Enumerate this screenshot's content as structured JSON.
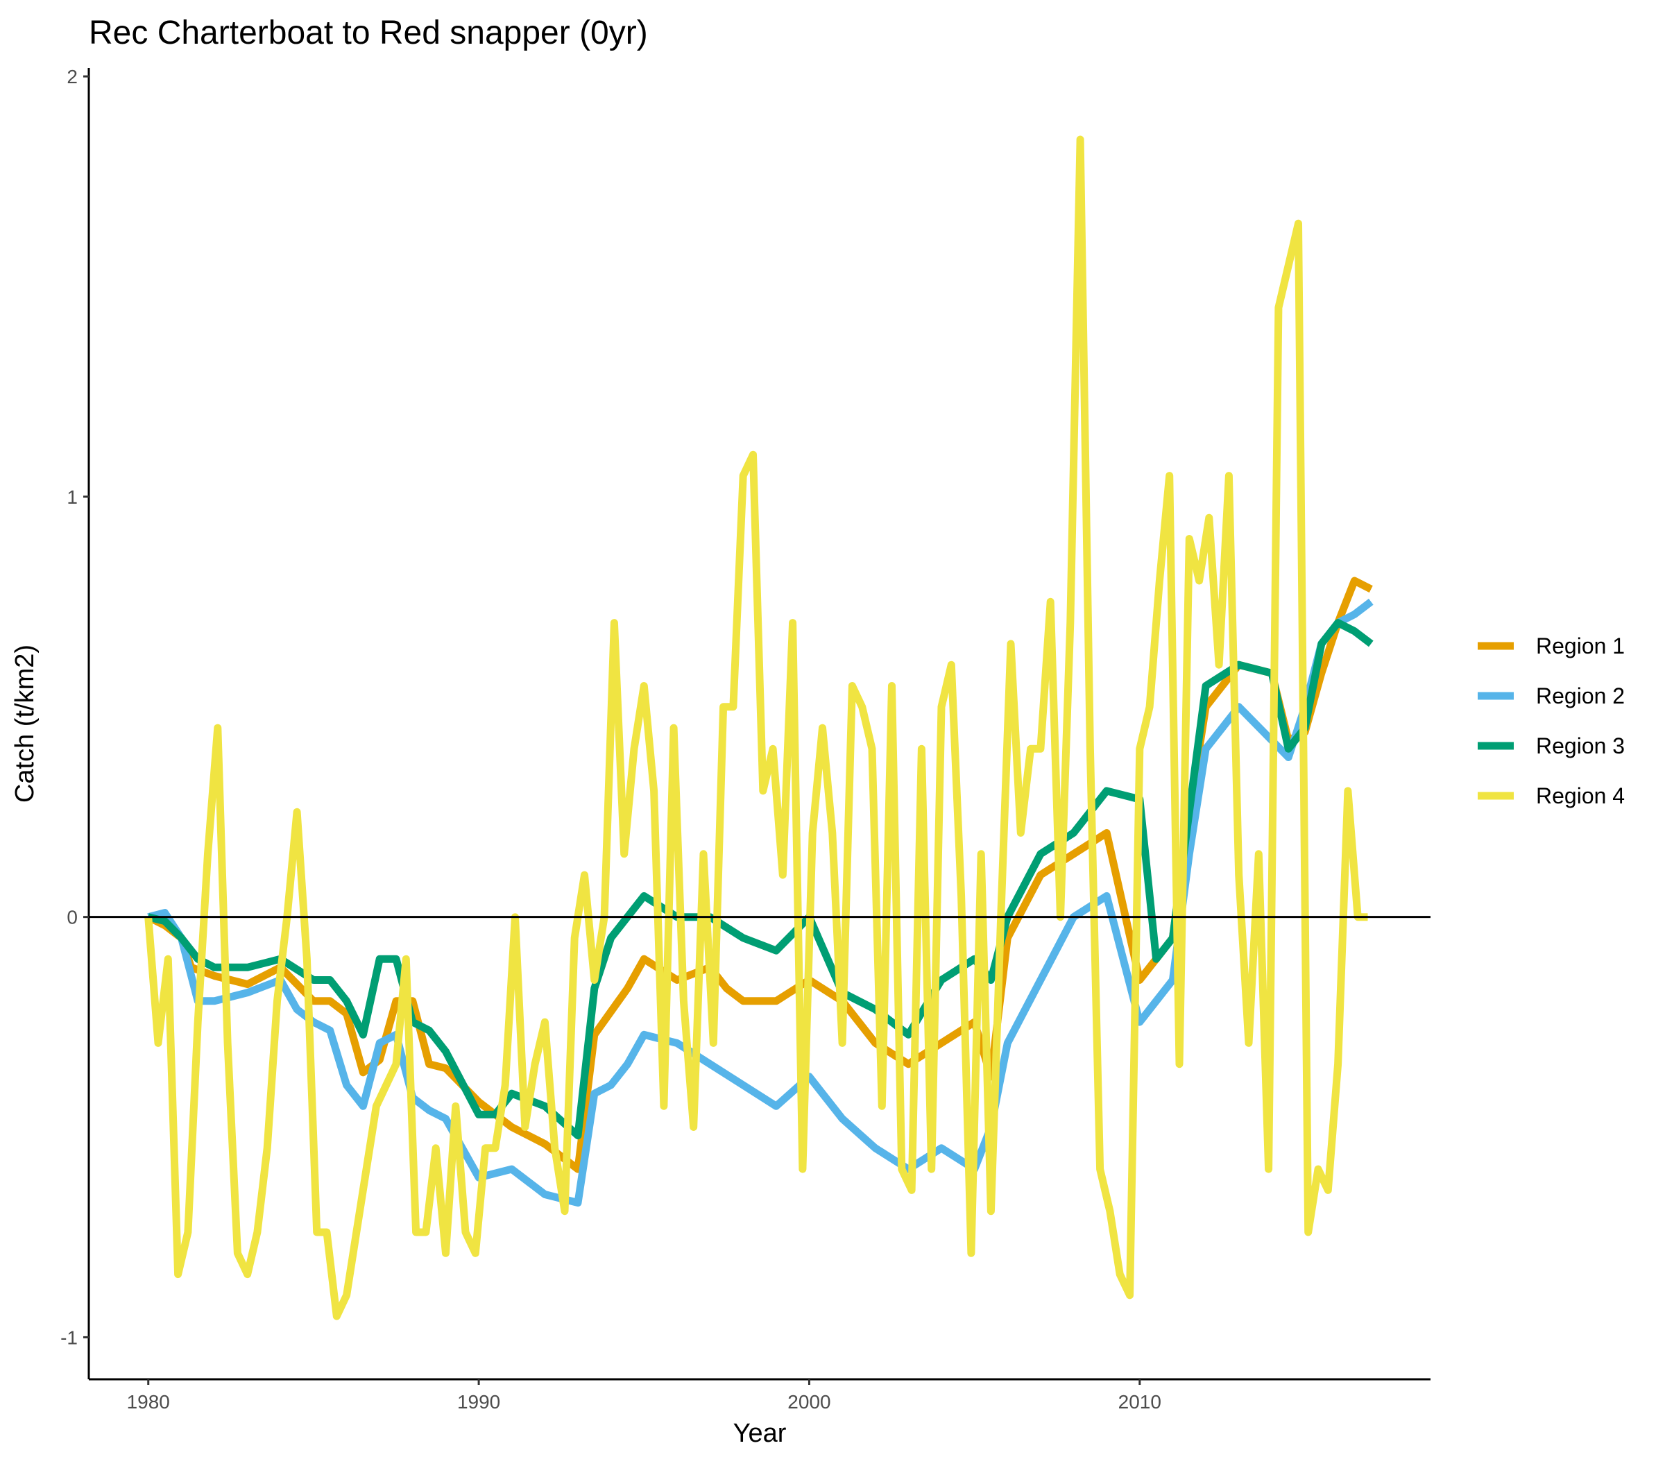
{
  "chart_data": {
    "type": "line",
    "title": "Rec Charterboat to Red snapper (0yr)",
    "xlabel": "Year",
    "ylabel": "Catch (t/km2)",
    "xlim": [
      1978.2,
      2018.8
    ],
    "ylim": [
      -1.1,
      2.02
    ],
    "x_ticks": [
      1980,
      1990,
      2000,
      2010
    ],
    "x_tick_labels": [
      "1980",
      "1990",
      "2000",
      "2010"
    ],
    "y_ticks": [
      -1,
      0,
      1,
      2
    ],
    "y_tick_labels": [
      "-1",
      "0",
      "1",
      "2"
    ],
    "reference_line_y": 0,
    "grid": false,
    "legend": {
      "position": "right"
    },
    "series": [
      {
        "name": "Region 1",
        "color": "#E69F00",
        "x": [
          1980.0,
          1980.5,
          1981.0,
          1981.3,
          1982.0,
          1983.0,
          1984.0,
          1985.0,
          1985.5,
          1986.0,
          1986.5,
          1987.0,
          1987.5,
          1988.0,
          1988.5,
          1989.0,
          1990.0,
          1991.0,
          1992.0,
          1993.0,
          1993.5,
          1994.5,
          1995.0,
          1996.0,
          1997.0,
          1997.5,
          1998.0,
          1999.0,
          2000.0,
          2001.0,
          2002.0,
          2003.0,
          2004.0,
          2005.0,
          2005.5,
          2006.0,
          2007.0,
          2008.0,
          2009.0,
          2010.0,
          2011.0,
          2011.5,
          2012.0,
          2013.0,
          2014.0,
          2014.5,
          2015.0,
          2015.5,
          2016.0,
          2016.5,
          2017.0
        ],
        "y": [
          0.0,
          -0.02,
          -0.05,
          -0.12,
          -0.14,
          -0.16,
          -0.12,
          -0.2,
          -0.2,
          -0.23,
          -0.37,
          -0.34,
          -0.2,
          -0.2,
          -0.35,
          -0.36,
          -0.44,
          -0.5,
          -0.54,
          -0.6,
          -0.28,
          -0.17,
          -0.1,
          -0.15,
          -0.12,
          -0.17,
          -0.2,
          -0.2,
          -0.15,
          -0.2,
          -0.3,
          -0.35,
          -0.3,
          -0.25,
          -0.38,
          -0.05,
          0.1,
          0.15,
          0.2,
          -0.15,
          -0.05,
          0.25,
          0.5,
          0.6,
          0.58,
          0.42,
          0.44,
          0.58,
          0.7,
          0.8,
          0.78
        ]
      },
      {
        "name": "Region 2",
        "color": "#56B4E9",
        "x": [
          1980.0,
          1980.5,
          1981.0,
          1981.5,
          1982.0,
          1983.0,
          1984.0,
          1984.5,
          1985.0,
          1985.5,
          1986.0,
          1986.5,
          1987.0,
          1987.5,
          1988.0,
          1988.5,
          1989.0,
          1990.0,
          1991.0,
          1992.0,
          1993.0,
          1993.5,
          1994.0,
          1994.5,
          1995.0,
          1996.0,
          1997.0,
          1998.0,
          1999.0,
          2000.0,
          2001.0,
          2002.0,
          2003.0,
          2004.0,
          2005.0,
          2005.5,
          2006.0,
          2007.0,
          2008.0,
          2009.0,
          2010.0,
          2011.0,
          2011.5,
          2012.0,
          2013.0,
          2014.0,
          2014.5,
          2015.0,
          2015.5,
          2016.0,
          2016.5,
          2017.0
        ],
        "y": [
          0.0,
          0.01,
          -0.05,
          -0.2,
          -0.2,
          -0.18,
          -0.15,
          -0.22,
          -0.25,
          -0.27,
          -0.4,
          -0.45,
          -0.3,
          -0.28,
          -0.43,
          -0.46,
          -0.48,
          -0.62,
          -0.6,
          -0.66,
          -0.68,
          -0.42,
          -0.4,
          -0.35,
          -0.28,
          -0.3,
          -0.35,
          -0.4,
          -0.45,
          -0.38,
          -0.48,
          -0.55,
          -0.6,
          -0.55,
          -0.6,
          -0.5,
          -0.3,
          -0.15,
          0.0,
          0.05,
          -0.25,
          -0.15,
          0.15,
          0.4,
          0.5,
          0.42,
          0.38,
          0.5,
          0.65,
          0.7,
          0.72,
          0.75
        ]
      },
      {
        "name": "Region 3",
        "color": "#009E73",
        "x": [
          1980.0,
          1980.5,
          1981.0,
          1981.5,
          1982.0,
          1983.0,
          1984.0,
          1985.0,
          1985.5,
          1986.0,
          1986.5,
          1987.0,
          1987.5,
          1988.0,
          1988.5,
          1989.0,
          1990.0,
          1990.5,
          1991.0,
          1992.0,
          1993.0,
          1993.5,
          1994.0,
          1995.0,
          1996.0,
          1997.0,
          1998.0,
          1999.0,
          2000.0,
          2001.0,
          2002.0,
          2003.0,
          2004.0,
          2005.0,
          2005.5,
          2006.0,
          2007.0,
          2008.0,
          2009.0,
          2010.0,
          2010.5,
          2011.0,
          2012.0,
          2013.0,
          2014.0,
          2014.5,
          2015.0,
          2015.5,
          2016.0,
          2016.5,
          2017.0
        ],
        "y": [
          0.0,
          -0.01,
          -0.05,
          -0.1,
          -0.12,
          -0.12,
          -0.1,
          -0.15,
          -0.15,
          -0.2,
          -0.28,
          -0.1,
          -0.1,
          -0.25,
          -0.27,
          -0.32,
          -0.47,
          -0.47,
          -0.42,
          -0.45,
          -0.52,
          -0.17,
          -0.05,
          0.05,
          0.0,
          0.0,
          -0.05,
          -0.08,
          0.0,
          -0.18,
          -0.22,
          -0.28,
          -0.15,
          -0.1,
          -0.15,
          0.0,
          0.15,
          0.2,
          0.3,
          0.28,
          -0.1,
          -0.05,
          0.55,
          0.6,
          0.58,
          0.4,
          0.45,
          0.65,
          0.7,
          0.68,
          0.65
        ]
      },
      {
        "name": "Region 4",
        "color": "#F0E442",
        "x": [
          1980.0,
          1980.3,
          1980.6,
          1980.9,
          1981.2,
          1981.5,
          1981.8,
          1982.1,
          1982.4,
          1982.7,
          1983.0,
          1983.3,
          1983.6,
          1983.9,
          1984.2,
          1984.5,
          1984.8,
          1985.1,
          1985.4,
          1985.7,
          1986.0,
          1986.3,
          1986.6,
          1986.9,
          1987.2,
          1987.5,
          1987.8,
          1988.1,
          1988.4,
          1988.7,
          1989.0,
          1989.3,
          1989.6,
          1989.9,
          1990.2,
          1990.5,
          1990.8,
          1991.1,
          1991.4,
          1991.7,
          1992.0,
          1992.3,
          1992.6,
          1992.9,
          1993.2,
          1993.5,
          1993.8,
          1994.1,
          1994.4,
          1994.7,
          1995.0,
          1995.3,
          1995.6,
          1995.9,
          1996.2,
          1996.5,
          1996.8,
          1997.1,
          1997.4,
          1997.7,
          1998.0,
          1998.3,
          1998.6,
          1998.9,
          1999.2,
          1999.5,
          1999.8,
          2000.1,
          2000.4,
          2000.7,
          2001.0,
          2001.3,
          2001.6,
          2001.9,
          2002.2,
          2002.5,
          2002.8,
          2003.1,
          2003.4,
          2003.7,
          2004.0,
          2004.3,
          2004.6,
          2004.9,
          2005.2,
          2005.5,
          2005.8,
          2006.1,
          2006.4,
          2006.7,
          2007.0,
          2007.3,
          2007.6,
          2007.9,
          2008.2,
          2008.5,
          2008.8,
          2009.1,
          2009.4,
          2009.7,
          2010.0,
          2010.3,
          2010.6,
          2010.9,
          2011.2,
          2011.5,
          2011.8,
          2012.1,
          2012.4,
          2012.7,
          2013.0,
          2013.3,
          2013.6,
          2013.9,
          2014.2,
          2014.5,
          2014.8,
          2015.1,
          2015.4,
          2015.7,
          2016.0,
          2016.3,
          2016.6,
          2016.9
        ],
        "y": [
          0.0,
          -0.3,
          -0.1,
          -0.85,
          -0.75,
          -0.25,
          0.15,
          0.45,
          -0.3,
          -0.8,
          -0.85,
          -0.75,
          -0.55,
          -0.2,
          0.0,
          0.25,
          -0.1,
          -0.75,
          -0.75,
          -0.95,
          -0.9,
          -0.75,
          -0.6,
          -0.45,
          -0.4,
          -0.35,
          -0.1,
          -0.75,
          -0.75,
          -0.55,
          -0.8,
          -0.45,
          -0.75,
          -0.8,
          -0.55,
          -0.55,
          -0.4,
          0.0,
          -0.5,
          -0.35,
          -0.25,
          -0.55,
          -0.7,
          -0.05,
          0.1,
          -0.15,
          0.0,
          0.7,
          0.15,
          0.4,
          0.55,
          0.3,
          -0.45,
          0.45,
          -0.2,
          -0.5,
          0.15,
          -0.3,
          0.5,
          0.5,
          1.05,
          1.1,
          0.3,
          0.4,
          0.1,
          0.7,
          -0.6,
          0.2,
          0.45,
          0.2,
          -0.3,
          0.55,
          0.5,
          0.4,
          -0.45,
          0.55,
          -0.6,
          -0.65,
          0.4,
          -0.6,
          0.5,
          0.6,
          0.05,
          -0.8,
          0.15,
          -0.7,
          0.0,
          0.65,
          0.2,
          0.4,
          0.4,
          0.75,
          0.0,
          0.7,
          1.85,
          0.4,
          -0.6,
          -0.7,
          -0.85,
          -0.9,
          0.4,
          0.5,
          0.8,
          1.05,
          -0.35,
          0.9,
          0.8,
          0.95,
          0.6,
          1.05,
          0.1,
          -0.3,
          0.15,
          -0.6,
          1.45,
          1.55,
          1.65,
          -0.75,
          -0.6,
          -0.65,
          -0.35,
          0.3,
          0.0,
          0.0
        ]
      }
    ]
  }
}
